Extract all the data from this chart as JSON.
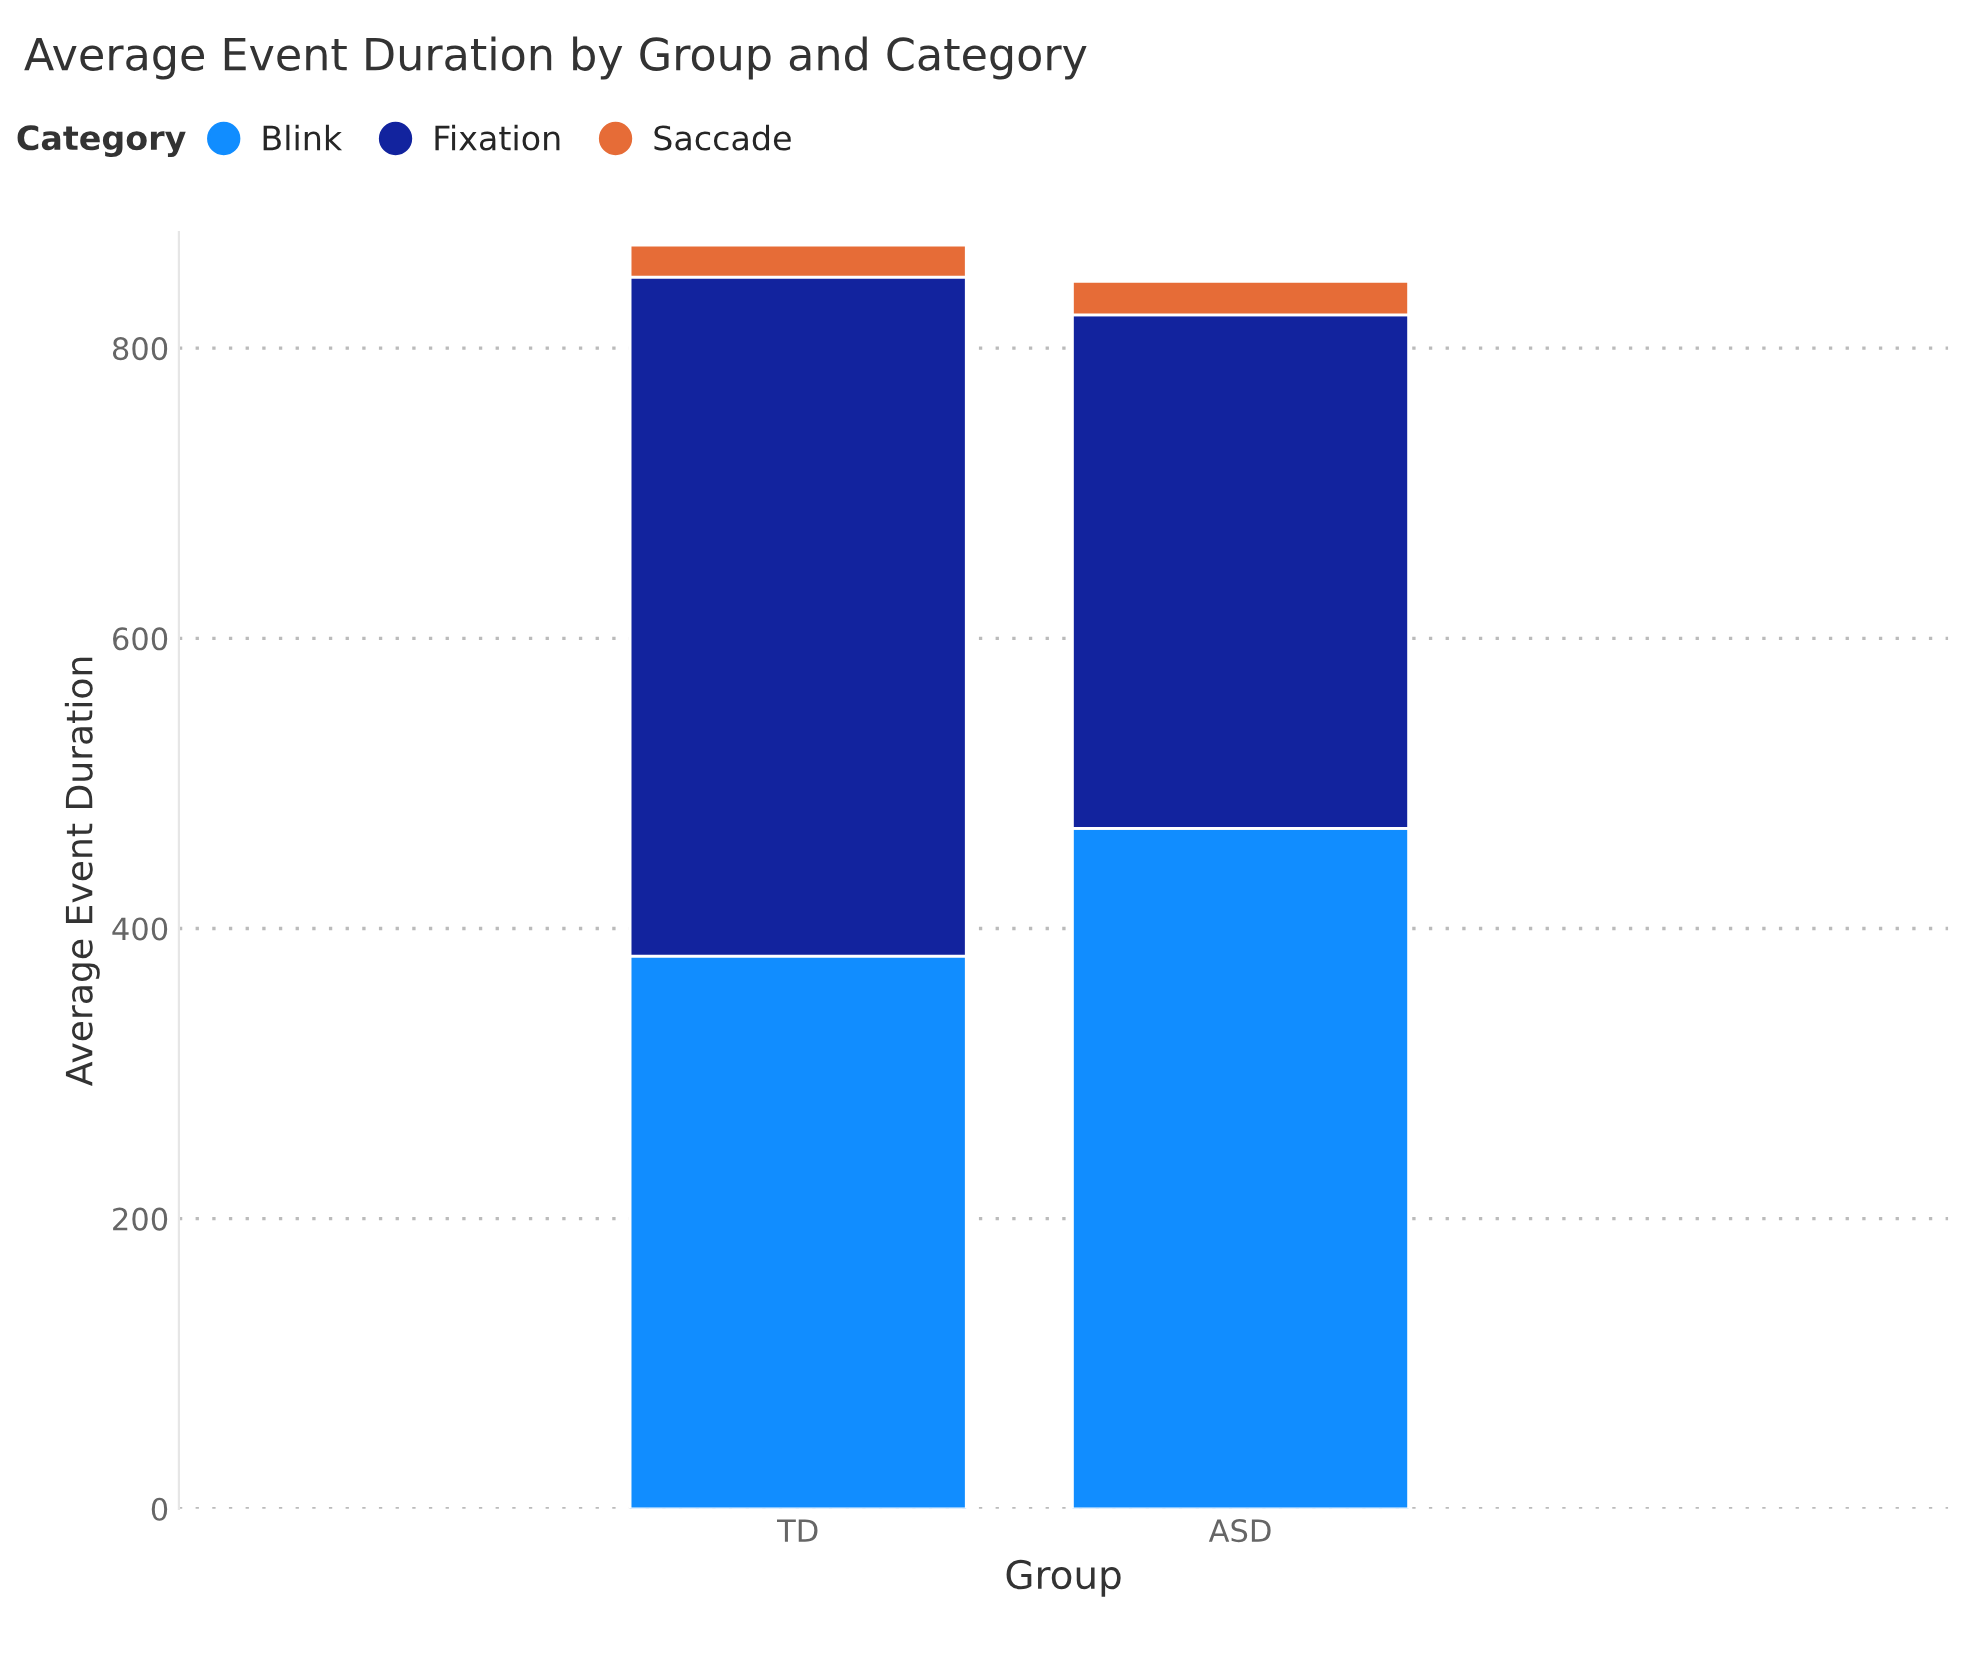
{
  "chart_data": {
    "type": "bar",
    "title": "Average Event Duration by Group and Category",
    "xlabel": "Group",
    "ylabel": "Average Event Duration",
    "legend_title": "Category",
    "categories": [
      "TD",
      "ASD"
    ],
    "stacked": true,
    "series": [
      {
        "name": "Blink",
        "color": "#118dff",
        "values": [
          381,
          469
        ]
      },
      {
        "name": "Fixation",
        "color": "#12239e",
        "values": [
          468,
          354
        ]
      },
      {
        "name": "Saccade",
        "color": "#e66c37",
        "values": [
          22,
          23
        ]
      }
    ],
    "ylim": [
      0,
      880
    ],
    "yticks": [
      0,
      200,
      400,
      600,
      800
    ],
    "grid": "y",
    "legend": "top left"
  }
}
